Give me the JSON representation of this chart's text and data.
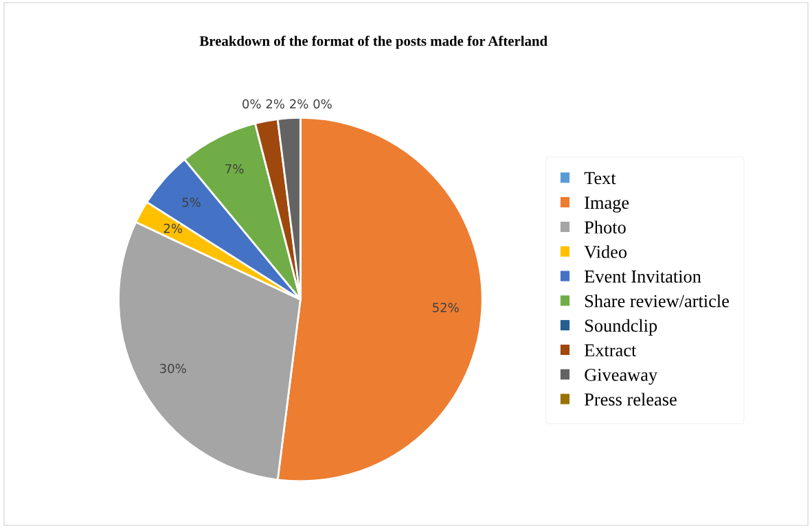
{
  "chart_data": {
    "type": "pie",
    "title": "Breakdown of the format of the posts made for Afterland",
    "categories": [
      "Text",
      "Image",
      "Photo",
      "Video",
      "Event Invitation",
      "Share review/article",
      "Soundclip",
      "Extract",
      "Giveaway",
      "Press release"
    ],
    "values": [
      0,
      52,
      30,
      2,
      5,
      7,
      0,
      2,
      2,
      0
    ],
    "value_labels": [
      null,
      "52%",
      "30%",
      "2%",
      "5%",
      "7%",
      "0%",
      "2%",
      "2%",
      "0%"
    ],
    "colors": [
      "#5b9bd5",
      "#ed7d31",
      "#a5a5a5",
      "#ffc000",
      "#4472c4",
      "#70ad47",
      "#255e91",
      "#9e480e",
      "#636363",
      "#997300"
    ],
    "legend": "right"
  }
}
